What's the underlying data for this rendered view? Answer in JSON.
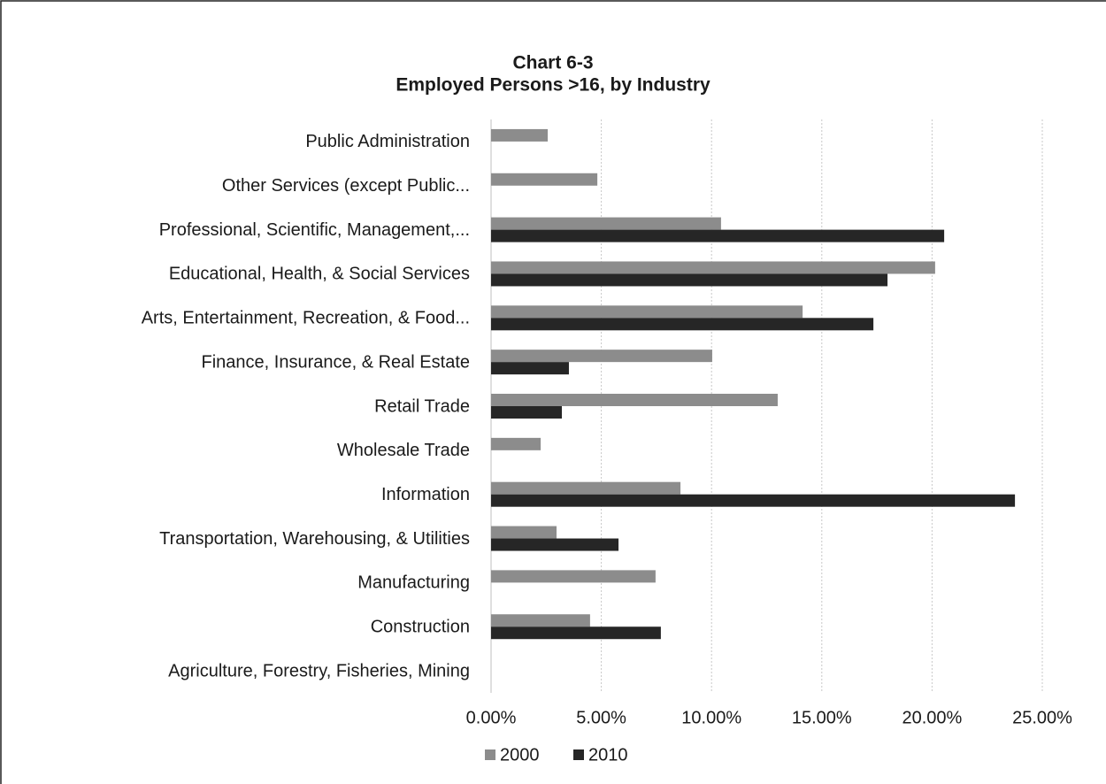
{
  "chart_data": {
    "type": "bar",
    "orientation": "horizontal",
    "title": [
      "Chart 6-3",
      "Employed Persons >16, by Industry"
    ],
    "categories": [
      "Public Administration",
      "Other Services (except Public...",
      "Professional, Scientific, Management,...",
      "Educational, Health, & Social Services",
      "Arts, Entertainment, Recreation, & Food...",
      "Finance, Insurance, & Real Estate",
      "Retail Trade",
      "Wholesale Trade",
      "Information",
      "Transportation, Warehousing, & Utilities",
      "Manufacturing",
      "Construction",
      "Agriculture, Forestry, Fisheries, Mining"
    ],
    "series": [
      {
        "name": "2000",
        "color": "#8c8c8c",
        "values": [
          2.57,
          4.82,
          10.43,
          20.14,
          14.13,
          10.03,
          13.0,
          2.25,
          8.59,
          2.97,
          7.46,
          4.49,
          0
        ]
      },
      {
        "name": "2010",
        "color": "#262626",
        "values": [
          0,
          0,
          20.55,
          17.98,
          17.34,
          3.53,
          3.21,
          0,
          23.76,
          5.78,
          0,
          7.7,
          0
        ]
      }
    ],
    "xlim": [
      0,
      25
    ],
    "xticks": [
      {
        "value": 0,
        "label": "0.00%"
      },
      {
        "value": 5,
        "label": "5.00%"
      },
      {
        "value": 10,
        "label": "10.00%"
      },
      {
        "value": 15,
        "label": "15.00%"
      },
      {
        "value": 20,
        "label": "20.00%"
      },
      {
        "value": 25,
        "label": "25.00%"
      }
    ],
    "grid": true,
    "legend": "bottom"
  }
}
